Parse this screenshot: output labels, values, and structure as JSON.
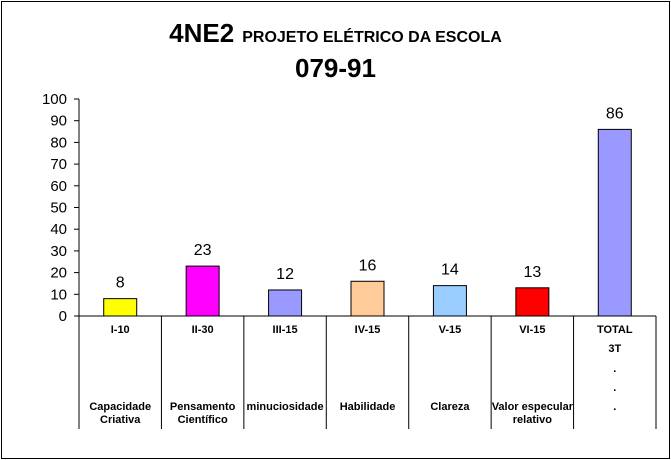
{
  "chart_data": {
    "type": "bar",
    "title_code": "4NE2",
    "title_desc": "PROJETO ELÉTRICO DA ESCOLA",
    "title_number": "079-91",
    "ylim": [
      0,
      100
    ],
    "yticks": [
      0,
      10,
      20,
      30,
      40,
      50,
      60,
      70,
      80,
      90,
      100
    ],
    "grid": false,
    "categories": [
      {
        "code": "I-10",
        "extra": "",
        "dots": "",
        "desc": [
          "Capacidade",
          "Criativa"
        ],
        "value": 8,
        "color": "#ffff00"
      },
      {
        "code": "II-30",
        "extra": "",
        "dots": "",
        "desc": [
          "Pensamento",
          "Científico"
        ],
        "value": 23,
        "color": "#ff00ff"
      },
      {
        "code": "III-15",
        "extra": "",
        "dots": "",
        "desc": [
          "minuciosidade"
        ],
        "value": 12,
        "color": "#9999ff"
      },
      {
        "code": "IV-15",
        "extra": "",
        "dots": "",
        "desc": [
          "Habilidade"
        ],
        "value": 16,
        "color": "#ffcc99"
      },
      {
        "code": "V-15",
        "extra": "",
        "dots": "",
        "desc": [
          "Clareza"
        ],
        "value": 14,
        "color": "#99ccff"
      },
      {
        "code": "VI-15",
        "extra": "",
        "dots": "",
        "desc": [
          "Valor especular",
          "relativo"
        ],
        "value": 13,
        "color": "#ff0000"
      },
      {
        "code": "TOTAL",
        "extra": "3T",
        "dots": ".",
        "desc": [
          "."
        ],
        "value": 86,
        "color": "#9999ff"
      }
    ]
  }
}
